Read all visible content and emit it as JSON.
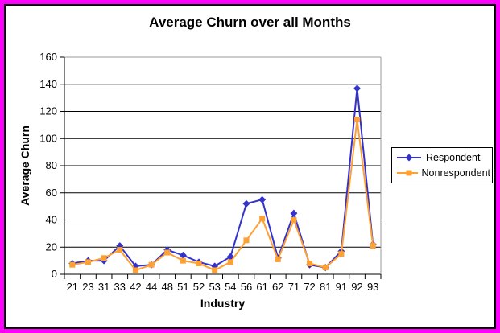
{
  "frame": {
    "border_color": "#FF00FF"
  },
  "chart_data": {
    "type": "line",
    "title": "Average Churn over all Months",
    "xlabel": "Industry",
    "ylabel": "Average Churn",
    "categories": [
      "21",
      "23",
      "31",
      "33",
      "42",
      "44",
      "48",
      "51",
      "52",
      "53",
      "54",
      "56",
      "61",
      "62",
      "71",
      "72",
      "81",
      "91",
      "92",
      "93"
    ],
    "series": [
      {
        "name": "Respondent",
        "color": "#3333CC",
        "marker": "diamond",
        "values": [
          8,
          10,
          10,
          21,
          6,
          7,
          18,
          14,
          9,
          6,
          13,
          52,
          55,
          12,
          45,
          7,
          5,
          17,
          137,
          22
        ]
      },
      {
        "name": "Nonrespondent",
        "color": "#FFA033",
        "marker": "square",
        "values": [
          7,
          9,
          12,
          18,
          3,
          7,
          16,
          10,
          8,
          3,
          9,
          25,
          41,
          11,
          40,
          8,
          5,
          15,
          114,
          21
        ]
      }
    ],
    "ylim": [
      0,
      160
    ],
    "ytick_step": 20,
    "grid": true,
    "legend_position": "right",
    "axis_color": "#000000",
    "plot_border_color": "#999999"
  }
}
